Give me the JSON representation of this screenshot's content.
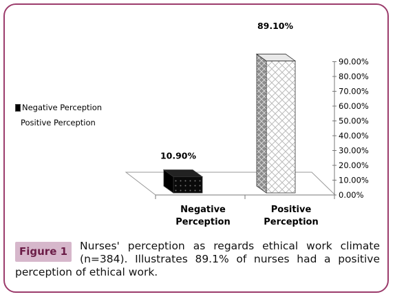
{
  "chart_data": {
    "type": "bar",
    "categories": [
      "Negative Perception",
      "Positive Perception"
    ],
    "category_labels": [
      [
        "Negative",
        "Perception"
      ],
      [
        "Positive",
        "Perception"
      ]
    ],
    "values": [
      10.9,
      89.1
    ],
    "data_labels": [
      "10.90%",
      "89.10%"
    ],
    "yticks": [
      "0.00%",
      "10.00%",
      "20.00%",
      "30.00%",
      "40.00%",
      "50.00%",
      "60.00%",
      "70.00%",
      "80.00%",
      "90.00%"
    ],
    "ylim": [
      0,
      90
    ],
    "legend": [
      "Negative Perception",
      "Positive Perception"
    ],
    "legend_position": "left",
    "three_d": true,
    "colors": {
      "negative": "#111111",
      "positive": "#ffffff",
      "grid": "#888888"
    }
  },
  "figure": {
    "label": "Figure 1",
    "caption": "Nurses' perception as regards ethical work climate (n=384). Illustrates 89.1% of nurses had a positive perception of ethical work."
  },
  "theme": {
    "border": "#9b3b6b",
    "label_bg": "#d6b7cb",
    "label_fg": "#6b1d47"
  }
}
